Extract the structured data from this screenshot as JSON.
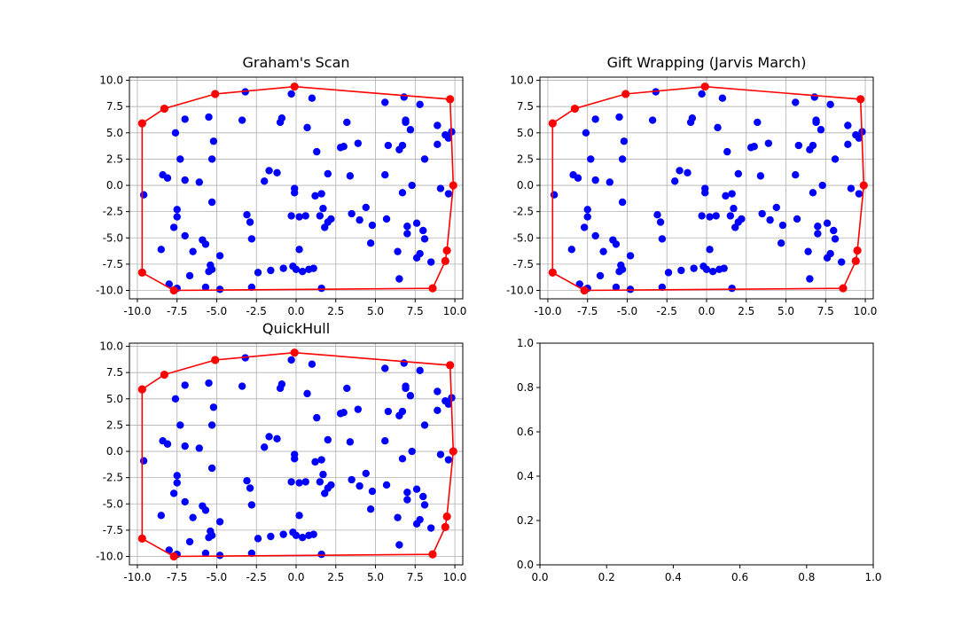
{
  "chart_data": [
    {
      "type": "scatter",
      "title": "Graham's Scan",
      "xlim": [
        -10.5,
        10.5
      ],
      "ylim": [
        -10.8,
        10.3
      ],
      "xticks": [
        "-10.0",
        "-7.5",
        "-5.0",
        "-2.5",
        "0.0",
        "2.5",
        "5.0",
        "7.5",
        "10.0"
      ],
      "yticks": [
        "-10.0",
        "-7.5",
        "-5.0",
        "-2.5",
        "0.0",
        "2.5",
        "5.0",
        "7.5",
        "10.0"
      ],
      "grid": true,
      "points_ref": "points",
      "hull_ref": "hull",
      "point_color": "#0000ff",
      "hull_color": "#ff0000"
    },
    {
      "type": "scatter",
      "title": "Gift Wrapping (Jarvis March)",
      "xlim": [
        -10.5,
        10.5
      ],
      "ylim": [
        -10.8,
        10.3
      ],
      "xticks": [
        "-10.0",
        "-7.5",
        "-5.0",
        "-2.5",
        "0.0",
        "2.5",
        "5.0",
        "7.5",
        "10.0"
      ],
      "yticks": [
        "-10.0",
        "-7.5",
        "-5.0",
        "-2.5",
        "0.0",
        "2.5",
        "5.0",
        "7.5",
        "10.0"
      ],
      "grid": true,
      "points_ref": "points",
      "hull_ref": "hull",
      "point_color": "#0000ff",
      "hull_color": "#ff0000"
    },
    {
      "type": "scatter",
      "title": "QuickHull",
      "xlim": [
        -10.5,
        10.5
      ],
      "ylim": [
        -10.8,
        10.3
      ],
      "xticks": [
        "-10.0",
        "-7.5",
        "-5.0",
        "-2.5",
        "0.0",
        "2.5",
        "5.0",
        "7.5",
        "10.0"
      ],
      "yticks": [
        "-10.0",
        "-7.5",
        "-5.0",
        "-2.5",
        "0.0",
        "2.5",
        "5.0",
        "7.5",
        "10.0"
      ],
      "grid": true,
      "points_ref": "points",
      "hull_ref": "hull",
      "point_color": "#0000ff",
      "hull_color": "#ff0000"
    },
    {
      "type": "scatter",
      "title": "",
      "xlim": [
        0,
        1
      ],
      "ylim": [
        0,
        1
      ],
      "xticks": [
        "0.0",
        "0.2",
        "0.4",
        "0.6",
        "0.8",
        "1.0"
      ],
      "yticks": [
        "0.0",
        "0.2",
        "0.4",
        "0.6",
        "0.8",
        "1.0"
      ],
      "grid": false,
      "points_ref": null,
      "hull_ref": null
    }
  ],
  "points": [
    [
      -9.6,
      -0.9
    ],
    [
      -8.5,
      -6.1
    ],
    [
      -8.4,
      1.0
    ],
    [
      -8.1,
      0.7
    ],
    [
      -7.7,
      -4.0
    ],
    [
      -7.5,
      -2.3
    ],
    [
      -7.5,
      -3.0
    ],
    [
      -7.6,
      5.0
    ],
    [
      -7.3,
      2.5
    ],
    [
      -7.0,
      6.3
    ],
    [
      -7.0,
      -4.8
    ],
    [
      -7.0,
      0.5
    ],
    [
      -6.7,
      -8.6
    ],
    [
      -6.5,
      -6.3
    ],
    [
      -6.1,
      0.3
    ],
    [
      -5.9,
      -5.2
    ],
    [
      -5.7,
      -5.6
    ],
    [
      -5.4,
      -7.6
    ],
    [
      -5.3,
      -8.0
    ],
    [
      -5.5,
      -8.2
    ],
    [
      -5.5,
      6.5
    ],
    [
      -5.3,
      2.5
    ],
    [
      -5.2,
      4.2
    ],
    [
      -5.3,
      -1.6
    ],
    [
      -5.7,
      -9.7
    ],
    [
      -4.8,
      -6.7
    ],
    [
      -4.8,
      -9.9
    ],
    [
      -7.5,
      -9.8
    ],
    [
      -8.0,
      -9.4
    ],
    [
      -3.4,
      6.2
    ],
    [
      -3.2,
      8.9
    ],
    [
      -3.1,
      -2.8
    ],
    [
      -2.9,
      -3.5
    ],
    [
      -2.8,
      -5.1
    ],
    [
      -2.8,
      -9.7
    ],
    [
      -2.4,
      -8.3
    ],
    [
      -2.0,
      0.4
    ],
    [
      -1.7,
      1.4
    ],
    [
      -1.6,
      -8.1
    ],
    [
      -1.2,
      1.2
    ],
    [
      -1.0,
      6.0
    ],
    [
      -0.9,
      6.4
    ],
    [
      -0.8,
      -7.9
    ],
    [
      -0.3,
      8.7
    ],
    [
      -0.3,
      -2.9
    ],
    [
      -0.2,
      -7.7
    ],
    [
      -0.1,
      -0.3
    ],
    [
      -0.1,
      -0.7
    ],
    [
      0.0,
      -8.0
    ],
    [
      0.2,
      -6.1
    ],
    [
      0.2,
      -3.0
    ],
    [
      0.4,
      -8.2
    ],
    [
      0.6,
      -2.9
    ],
    [
      0.7,
      5.5
    ],
    [
      0.8,
      -8.0
    ],
    [
      1.0,
      8.3
    ],
    [
      1.1,
      -7.9
    ],
    [
      1.2,
      -1.0
    ],
    [
      1.3,
      3.2
    ],
    [
      1.5,
      -2.9
    ],
    [
      1.6,
      -9.8
    ],
    [
      1.6,
      -0.8
    ],
    [
      1.7,
      -2.2
    ],
    [
      1.8,
      -4.0
    ],
    [
      2.0,
      1.1
    ],
    [
      2.0,
      -3.5
    ],
    [
      2.2,
      -3.2
    ],
    [
      2.8,
      3.6
    ],
    [
      3.0,
      3.7
    ],
    [
      3.2,
      6.0
    ],
    [
      3.4,
      0.9
    ],
    [
      3.5,
      -2.7
    ],
    [
      3.9,
      4.0
    ],
    [
      4.0,
      -3.3
    ],
    [
      4.4,
      -2.1
    ],
    [
      4.7,
      -5.5
    ],
    [
      4.8,
      -3.8
    ],
    [
      5.6,
      7.9
    ],
    [
      5.6,
      1.0
    ],
    [
      5.7,
      -3.2
    ],
    [
      5.8,
      3.8
    ],
    [
      6.4,
      -6.3
    ],
    [
      6.5,
      -8.9
    ],
    [
      6.5,
      3.4
    ],
    [
      6.7,
      3.8
    ],
    [
      6.7,
      -0.7
    ],
    [
      6.8,
      8.4
    ],
    [
      6.9,
      6.2
    ],
    [
      6.9,
      6.0
    ],
    [
      7.0,
      -4.6
    ],
    [
      7.0,
      -3.9
    ],
    [
      7.2,
      5.3
    ],
    [
      7.3,
      0.0
    ],
    [
      7.6,
      -3.6
    ],
    [
      7.6,
      -6.9
    ],
    [
      7.8,
      -6.5
    ],
    [
      7.8,
      7.7
    ],
    [
      8.0,
      -4.3
    ],
    [
      8.1,
      -5.1
    ],
    [
      8.1,
      2.5
    ],
    [
      8.5,
      -7.3
    ],
    [
      8.9,
      5.7
    ],
    [
      8.9,
      3.9
    ],
    [
      9.1,
      -0.3
    ],
    [
      9.4,
      4.8
    ],
    [
      9.6,
      -0.8
    ],
    [
      9.6,
      4.5
    ],
    [
      9.8,
      5.1
    ],
    [
      -9.7,
      5.9
    ],
    [
      -8.3,
      7.3
    ],
    [
      -5.1,
      8.7
    ],
    [
      -0.1,
      9.4
    ],
    [
      9.7,
      8.2
    ],
    [
      9.9,
      0.0
    ],
    [
      9.5,
      -6.2
    ],
    [
      9.4,
      -7.2
    ],
    [
      8.6,
      -9.8
    ],
    [
      -7.7,
      -10.0
    ],
    [
      -9.7,
      -8.3
    ]
  ],
  "hull": [
    [
      -9.7,
      5.9
    ],
    [
      -8.3,
      7.3
    ],
    [
      -5.1,
      8.7
    ],
    [
      -0.1,
      9.4
    ],
    [
      9.7,
      8.2
    ],
    [
      9.9,
      0.0
    ],
    [
      9.5,
      -6.2
    ],
    [
      9.4,
      -7.2
    ],
    [
      8.6,
      -9.8
    ],
    [
      -7.7,
      -10.0
    ],
    [
      -9.7,
      -8.3
    ]
  ]
}
